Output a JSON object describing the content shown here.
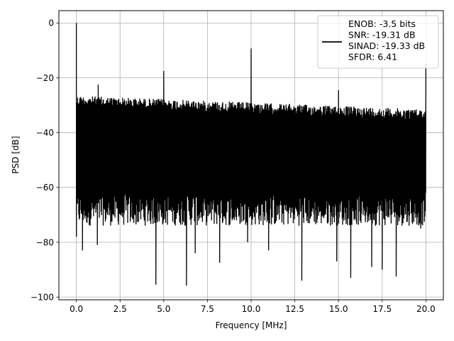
{
  "chart_data": {
    "type": "line",
    "title": "",
    "xlabel": "Frequency [MHz]",
    "ylabel": "PSD [dB]",
    "xlim": [
      -1.0,
      21.0
    ],
    "ylim": [
      -101,
      4.5
    ],
    "xticks": [
      0.0,
      2.5,
      5.0,
      7.5,
      10.0,
      12.5,
      15.0,
      17.5,
      20.0
    ],
    "xtick_labels": [
      "0.0",
      "2.5",
      "5.0",
      "7.5",
      "10.0",
      "12.5",
      "15.0",
      "17.5",
      "20.0"
    ],
    "yticks": [
      0,
      -20,
      -40,
      -60,
      -80,
      -100
    ],
    "ytick_labels": [
      "0",
      "−20",
      "−40",
      "−60",
      "−80",
      "−100"
    ],
    "grid": true,
    "legend_position": "top-right",
    "series": [
      {
        "name": "ENOB: -3.5 bits\nSNR: -19.31 dB\nSINAD: -19.33 dB\nSFDR: 6.41",
        "color": "#000000",
        "noise_floor": {
          "x_range": [
            0.0,
            20.0
          ],
          "upper_envelope_start": -26.5,
          "upper_envelope_end": -31.5,
          "lower_envelope": -68.0,
          "deep_notch_min": -96.0
        },
        "spurs": [
          {
            "x": 0.0,
            "y": 0.0
          },
          {
            "x": 1.25,
            "y": -22.5
          },
          {
            "x": 5.0,
            "y": -17.5
          },
          {
            "x": 10.0,
            "y": -9.3
          },
          {
            "x": 15.0,
            "y": -24.5
          },
          {
            "x": 20.0,
            "y": -15.0
          }
        ],
        "notches": [
          {
            "x": 0.35,
            "y": -83
          },
          {
            "x": 1.2,
            "y": -81
          },
          {
            "x": 4.55,
            "y": -95.5
          },
          {
            "x": 6.3,
            "y": -95.8
          },
          {
            "x": 6.8,
            "y": -84
          },
          {
            "x": 8.2,
            "y": -87.5
          },
          {
            "x": 9.8,
            "y": -80
          },
          {
            "x": 11.0,
            "y": -83
          },
          {
            "x": 12.9,
            "y": -94
          },
          {
            "x": 14.9,
            "y": -87
          },
          {
            "x": 15.7,
            "y": -93
          },
          {
            "x": 16.9,
            "y": -89
          },
          {
            "x": 17.5,
            "y": -90
          },
          {
            "x": 18.3,
            "y": -92.5
          },
          {
            "x": 19.7,
            "y": -75
          }
        ]
      }
    ]
  }
}
